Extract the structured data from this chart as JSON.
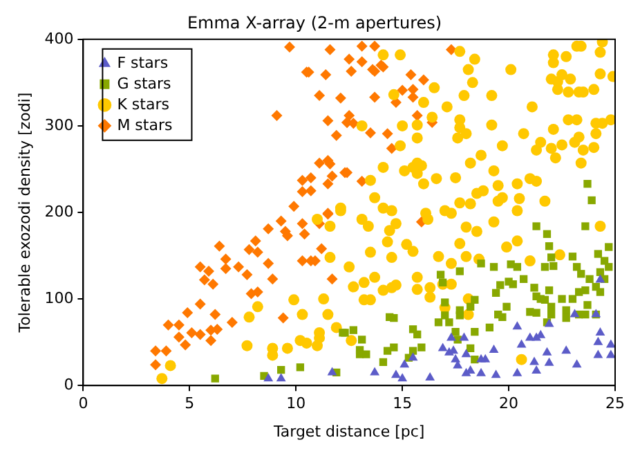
{
  "chart_data": {
    "type": "scatter",
    "title": "Emma X-array (2-m apertures)",
    "xlabel": "Target distance [pc]",
    "ylabel": "Tolerable exozodi density [zodi]",
    "xlim": [
      0,
      25
    ],
    "xticks": [
      0,
      5,
      10,
      15,
      20,
      25
    ],
    "ylim": [
      0,
      400
    ],
    "yticks": [
      0,
      100,
      200,
      300,
      400
    ],
    "grid": false,
    "legend": "top left",
    "series": [
      {
        "name": "F stars",
        "color": "#5c5cc8",
        "marker": "triangle",
        "x": [
          8.7,
          9.3,
          11.7,
          13.7,
          14.7,
          15.1,
          15.0,
          15.5,
          16.3,
          16.9,
          17.2,
          17.4,
          17.5,
          17.6,
          18.0,
          18.0,
          18.2,
          17.3,
          17.9,
          18.7,
          18.9,
          19.3,
          18.7,
          19.4,
          20.4,
          20.4,
          20.6,
          21.0,
          21.3,
          21.5,
          21.9,
          21.2,
          21.3,
          21.8,
          21.9,
          22.7,
          23.2,
          23.1,
          24.1,
          24.3,
          24.2,
          24.8,
          24.2,
          24.8,
          24.3
        ],
        "values": [
          8,
          8,
          15,
          15,
          12,
          24,
          8,
          32,
          9,
          43,
          38,
          40,
          30,
          23,
          14,
          36,
          17,
          55,
          55,
          30,
          30,
          41,
          14,
          12,
          14,
          68,
          47,
          55,
          55,
          58,
          71,
          27,
          17,
          38,
          26,
          40,
          24,
          82,
          82,
          61,
          50,
          47,
          35,
          35,
          122
        ]
      },
      {
        "name": "G stars",
        "color": "#88a800",
        "marker": "square",
        "x": [
          6.2,
          8.5,
          9.3,
          10.2,
          11.9,
          12.3,
          12.7,
          23.7,
          23.9,
          21.3,
          21.8,
          23.6,
          21.9,
          22.0,
          21.7,
          22.1,
          23.0,
          24.2,
          24.5,
          24.7,
          18.7,
          19.3,
          20.1,
          20.4,
          20.7,
          20.0,
          20.2,
          19.6,
          19.4,
          19.9,
          19.5,
          19.7,
          21.0,
          21.3,
          21.2,
          21.3,
          21.5,
          21.9,
          21.7,
          22.0,
          22.0,
          22.5,
          22.7,
          22.7,
          23.0,
          23.3,
          23.6,
          23.7,
          23.3,
          23.6,
          24.1,
          23.8,
          24.1,
          24.3,
          24.5,
          24.3,
          23.4,
          23.2,
          24.7,
          17.7,
          16.8,
          16.9,
          17.0,
          17.0,
          17.7,
          17.7,
          18.2,
          18.4,
          17.2,
          17.5,
          17.6,
          18.4,
          19.1,
          18.2,
          18.4,
          16.7,
          15.5,
          15.7,
          15.9,
          15.5,
          14.6,
          14.3,
          14.1,
          15.3,
          13.1,
          13.0,
          13.0,
          13.3,
          12.2,
          14.4,
          14.6,
          21.8
        ],
        "values": [
          8,
          11,
          18,
          21,
          15,
          61,
          64,
          233,
          214,
          184,
          175,
          184,
          161,
          148,
          137,
          138,
          149,
          152,
          144,
          160,
          141,
          137,
          140,
          137,
          123,
          120,
          117,
          116,
          107,
          91,
          82,
          79,
          85,
          84,
          113,
          103,
          100,
          110,
          99,
          91,
          82,
          100,
          87,
          78,
          100,
          108,
          110,
          93,
          82,
          82,
          82,
          123,
          114,
          108,
          123,
          131,
          129,
          137,
          137,
          132,
          128,
          119,
          96,
          81,
          81,
          87,
          91,
          99,
          73,
          62,
          53,
          62,
          67,
          43,
          30,
          73,
          65,
          59,
          44,
          40,
          44,
          40,
          27,
          32,
          53,
          41,
          36,
          36,
          61,
          79,
          78,
          73
        ]
      },
      {
        "name": "K stars",
        "color": "#ffc800",
        "marker": "circle",
        "x": [
          3.7,
          4.1,
          7.7,
          8.9,
          8.9,
          9.6,
          10.2,
          10.5,
          11.0,
          11.1,
          11.1,
          11.9,
          11.5,
          10.3,
          9.9,
          8.2,
          7.8,
          11.3,
          11.6,
          11.6,
          11.0,
          12.1,
          12.5,
          12.1,
          14.9,
          14.1,
          17.7,
          18.1,
          18.4,
          18.3,
          20.1,
          19.2,
          17.9,
          17.1,
          16.5,
          16.0,
          14.6,
          17.7,
          17.7,
          18.0,
          17.6,
          19.2,
          21.1,
          20.7,
          19.7,
          18.2,
          18.7,
          19.3,
          17.5,
          16.6,
          16.0,
          15.7,
          15.7,
          15.9,
          15.5,
          15.1,
          14.1,
          15.0,
          15.7,
          15.7,
          14.9,
          16.4,
          13.1,
          13.5,
          13.7,
          14.1,
          14.5,
          16.1,
          17.0,
          17.3,
          17.7,
          18.2,
          18.5,
          18.8,
          19.5,
          19.7,
          19.5,
          20.4,
          20.5,
          20.4,
          21.0,
          21.3,
          21.7,
          21.3,
          21.5,
          22.0,
          22.2,
          22.1,
          22.5,
          23.1,
          23.3,
          23.2,
          22.8,
          23.5,
          24.1,
          24.1,
          24.4,
          24.8,
          24.0,
          23.5,
          23.3,
          22.8,
          22.3,
          22.3,
          22.0,
          22.9,
          22.5,
          24.3,
          24.9,
          22.1,
          22.1,
          22.7,
          24.3,
          23.2,
          23.4,
          24.4,
          23.4,
          24.0,
          13.1,
          13.4,
          13.5,
          14.4,
          14.3,
          14.5,
          14.7,
          15.2,
          15.5,
          15.7,
          16.2,
          16.7,
          17.3,
          18.0,
          18.5,
          17.7,
          18.0,
          18.6,
          19.3,
          19.9,
          20.4,
          21.0,
          13.5,
          13.2,
          12.7,
          13.2,
          13.7,
          14.1,
          14.5,
          14.7,
          15.7,
          16.3,
          16.3,
          16.9,
          17.3,
          17.0,
          18.1,
          18.1,
          12.6,
          20.6,
          22.4,
          24.3
        ],
        "values": [
          8,
          23,
          46,
          43,
          35,
          43,
          52,
          49,
          46,
          55,
          61,
          67,
          82,
          82,
          99,
          91,
          79,
          100,
          148,
          184,
          192,
          202,
          137,
          205,
          382,
          382,
          386,
          365,
          377,
          350,
          365,
          335,
          335,
          322,
          344,
          327,
          336,
          307,
          298,
          291,
          286,
          301,
          322,
          291,
          277,
          257,
          266,
          248,
          240,
          239,
          233,
          257,
          245,
          254,
          252,
          248,
          252,
          300,
          301,
          286,
          277,
          310,
          300,
          237,
          217,
          205,
          202,
          199,
          202,
          199,
          211,
          210,
          222,
          225,
          231,
          217,
          213,
          233,
          216,
          202,
          239,
          236,
          213,
          272,
          281,
          274,
          263,
          296,
          278,
          281,
          287,
          307,
          307,
          272,
          291,
          303,
          303,
          307,
          342,
          339,
          339,
          339,
          342,
          351,
          354,
          354,
          359,
          360,
          357,
          373,
          382,
          380,
          385,
          392,
          392,
          397,
          257,
          275,
          192,
          184,
          154,
          179,
          166,
          148,
          187,
          163,
          155,
          125,
          192,
          149,
          141,
          183,
          178,
          164,
          149,
          146,
          189,
          160,
          167,
          144,
          99,
          99,
          114,
          119,
          125,
          110,
          113,
          116,
          111,
          113,
          102,
          117,
          117,
          90,
          100,
          82,
          52,
          30,
          151,
          184
        ]
      },
      {
        "name": "M stars",
        "color": "#ff7800",
        "marker": "diamond",
        "x": [
          9.7,
          11.6,
          10.6,
          11.4,
          13.1,
          13.7,
          12.5,
          13.1,
          13.6,
          14.0,
          17.3,
          9.1,
          11.5,
          12.4,
          11.9,
          11.1,
          11.5,
          11.6,
          10.3,
          10.7,
          11.7,
          12.3,
          10.3,
          10.7,
          11.5,
          9.9,
          11.5,
          11.1,
          12.1,
          10.5,
          12.6,
          13.7,
          14.1,
          15.4,
          16.0,
          15.0,
          15.5,
          13.7,
          14.7,
          15.5,
          15.7,
          16.4,
          12.5,
          12.4,
          12.7,
          13.5,
          14.3,
          14.5,
          12.4,
          13.1,
          15.9,
          9.3,
          8.7,
          8.1,
          6.4,
          6.7,
          5.5,
          5.9,
          6.7,
          7.3,
          7.8,
          8.2,
          8.7,
          7.7,
          8.9,
          5.7,
          6.1,
          7.9,
          8.2,
          5.5,
          6.2,
          4.9,
          4.0,
          4.5,
          6.0,
          6.3,
          5.1,
          4.5,
          5.5,
          7.0,
          9.4,
          4.8,
          6.0,
          3.4,
          3.9,
          3.4,
          10.3,
          10.4,
          9.5,
          9.6,
          11.1,
          11.5,
          10.3,
          10.7,
          10.9,
          11.2,
          11.7
        ],
        "values": [
          391,
          388,
          362,
          359,
          392,
          392,
          377,
          374,
          365,
          370,
          388,
          312,
          306,
          304,
          289,
          257,
          260,
          256,
          237,
          240,
          242,
          246,
          224,
          225,
          233,
          207,
          199,
          335,
          332,
          362,
          363,
          363,
          368,
          359,
          353,
          341,
          342,
          333,
          327,
          333,
          312,
          304,
          312,
          304,
          303,
          292,
          291,
          274,
          246,
          236,
          189,
          190,
          181,
          167,
          161,
          146,
          137,
          132,
          135,
          137,
          157,
          154,
          141,
          128,
          123,
          122,
          117,
          106,
          108,
          94,
          82,
          84,
          70,
          70,
          64,
          65,
          61,
          56,
          59,
          73,
          78,
          47,
          52,
          40,
          40,
          24,
          187,
          175,
          178,
          173,
          187,
          198,
          144,
          144,
          144,
          158,
          123
        ]
      }
    ]
  }
}
